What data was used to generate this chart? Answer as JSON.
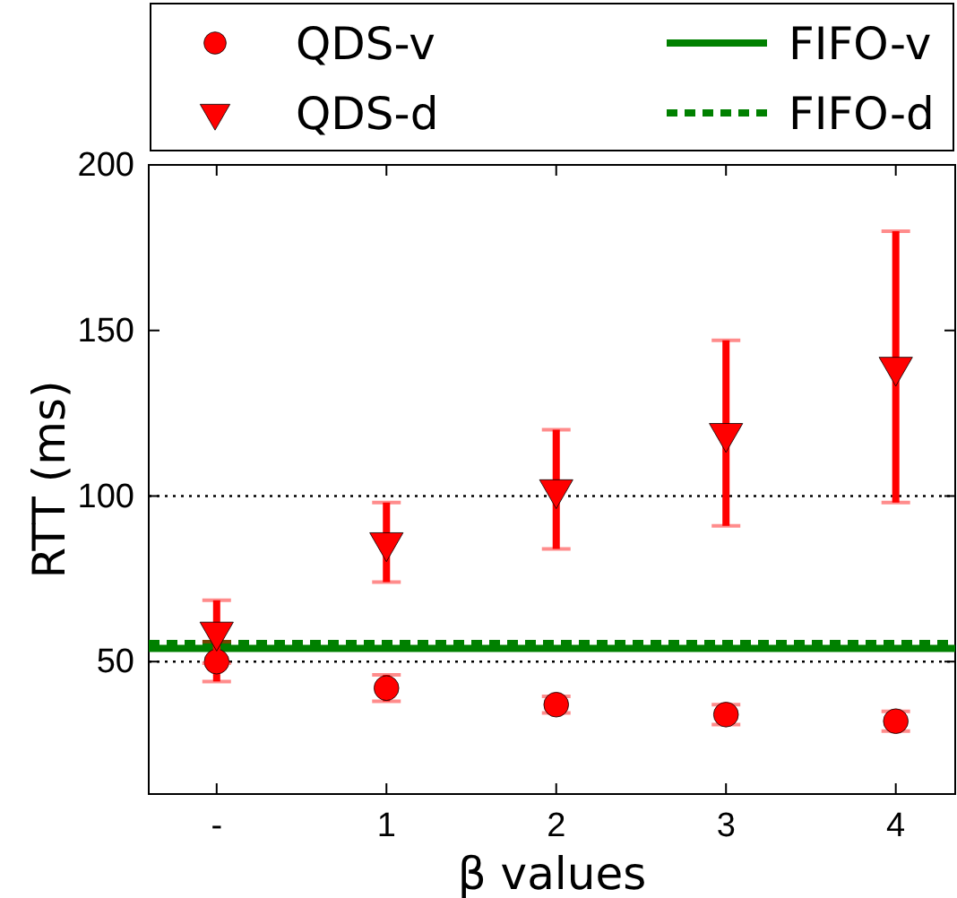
{
  "chart_data": {
    "type": "scatter",
    "xlabel": "β values",
    "ylabel": "RTT (ms)",
    "xlim": [
      -0.4,
      4.35
    ],
    "ylim": [
      10,
      200
    ],
    "xticks": [
      {
        "value": 0,
        "label": "-"
      },
      1,
      2,
      3,
      4
    ],
    "yticks": [
      50,
      100,
      150,
      200
    ],
    "grid": false,
    "legend": "top",
    "series": [
      {
        "name": "QDS-v",
        "marker": "circle",
        "color": "#ff0000",
        "x": [
          0,
          1,
          2,
          3,
          4
        ],
        "values": [
          50,
          42,
          37,
          34,
          32
        ],
        "errors": [
          6,
          4,
          2.5,
          3,
          3
        ]
      },
      {
        "name": "QDS-d",
        "marker": "triangle",
        "color": "#ff0000",
        "x": [
          0,
          1,
          2,
          3,
          4
        ],
        "values": [
          59,
          86,
          102,
          119,
          139
        ],
        "errors": [
          9.5,
          12,
          18,
          28,
          41
        ]
      },
      {
        "name": "FIFO-v",
        "type": "line",
        "marker": "none",
        "line_style": "solid",
        "color": "#008000",
        "x": [
          -0.4,
          4.35
        ],
        "values": [
          54,
          54
        ]
      },
      {
        "name": "FIFO-d",
        "type": "line",
        "marker": "none",
        "line_style": "dashed",
        "color": "#008000",
        "x": [
          -0.4,
          4.35
        ],
        "values": [
          55.5,
          55.5
        ]
      }
    ],
    "ref_lines": [
      {
        "axis": "y",
        "value": 50,
        "color": "#000000",
        "line_style": "dotted"
      },
      {
        "axis": "y",
        "value": 100,
        "color": "#000000",
        "line_style": "dotted"
      }
    ]
  }
}
